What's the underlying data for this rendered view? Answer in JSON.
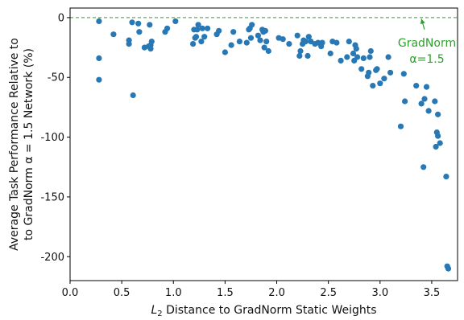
{
  "chart_data": {
    "type": "scatter",
    "title": "",
    "xlabel_main": "L",
    "xlabel_sub": "2",
    "xlabel_rest": " Distance to GradNorm Static Weights",
    "ylabel_line1": "Average Task Performance Relative to",
    "ylabel_line2": "to GradNorm α = 1.5 Network (%)",
    "xlim": [
      0.0,
      3.75
    ],
    "ylim": [
      -220,
      8
    ],
    "xticks": [
      0.0,
      0.5,
      1.0,
      1.5,
      2.0,
      2.5,
      3.0,
      3.5
    ],
    "xtick_labels": [
      "0.0",
      "0.5",
      "1.0",
      "1.5",
      "2.0",
      "2.5",
      "3.0",
      "3.5"
    ],
    "yticks": [
      0,
      -50,
      -100,
      -150,
      -200
    ],
    "ytick_labels": [
      "0",
      "-50",
      "-100",
      "-150",
      "-200"
    ],
    "grid": false,
    "colors": {
      "points": "#2878b5",
      "reference": "#2ca02c"
    },
    "reference_line": {
      "y": 0,
      "style": "dashed"
    },
    "annotation": {
      "line1": "GradNorm",
      "line2": "α=1.5",
      "arrow_from": [
        3.43,
        -10
      ],
      "arrow_to": [
        3.4,
        -1
      ]
    },
    "points": [
      [
        0.28,
        -3
      ],
      [
        0.28,
        -34
      ],
      [
        0.28,
        -52
      ],
      [
        0.42,
        -14
      ],
      [
        0.57,
        -19
      ],
      [
        0.57,
        -22
      ],
      [
        0.6,
        -4
      ],
      [
        0.61,
        -65
      ],
      [
        0.66,
        -5
      ],
      [
        0.67,
        -12
      ],
      [
        0.72,
        -25
      ],
      [
        0.76,
        -24
      ],
      [
        0.77,
        -6
      ],
      [
        0.78,
        -26
      ],
      [
        0.79,
        -20
      ],
      [
        0.78,
        -23
      ],
      [
        0.92,
        -12
      ],
      [
        0.94,
        -9
      ],
      [
        1.02,
        -3
      ],
      [
        1.19,
        -22
      ],
      [
        1.2,
        -10
      ],
      [
        1.21,
        -17
      ],
      [
        1.22,
        -16
      ],
      [
        1.23,
        -10
      ],
      [
        1.24,
        -6
      ],
      [
        1.27,
        -20
      ],
      [
        1.28,
        -9
      ],
      [
        1.3,
        -16
      ],
      [
        1.33,
        -9
      ],
      [
        1.42,
        -14
      ],
      [
        1.44,
        -11
      ],
      [
        1.5,
        -29
      ],
      [
        1.56,
        -23
      ],
      [
        1.58,
        -12
      ],
      [
        1.64,
        -20
      ],
      [
        1.71,
        -21
      ],
      [
        1.73,
        -10
      ],
      [
        1.74,
        -9
      ],
      [
        1.75,
        -17
      ],
      [
        1.76,
        -6
      ],
      [
        1.82,
        -15
      ],
      [
        1.84,
        -19
      ],
      [
        1.86,
        -10
      ],
      [
        1.87,
        -12
      ],
      [
        1.88,
        -25
      ],
      [
        1.89,
        -11
      ],
      [
        1.9,
        -20
      ],
      [
        1.92,
        -28
      ],
      [
        2.02,
        -17
      ],
      [
        2.06,
        -18
      ],
      [
        2.12,
        -22
      ],
      [
        2.2,
        -15
      ],
      [
        2.22,
        -32
      ],
      [
        2.23,
        -28
      ],
      [
        2.25,
        -22
      ],
      [
        2.26,
        -19
      ],
      [
        2.28,
        -20
      ],
      [
        2.3,
        -32
      ],
      [
        2.31,
        -16
      ],
      [
        2.33,
        -20
      ],
      [
        2.37,
        -22
      ],
      [
        2.4,
        -21
      ],
      [
        2.43,
        -24
      ],
      [
        2.44,
        -21
      ],
      [
        2.52,
        -30
      ],
      [
        2.54,
        -20
      ],
      [
        2.58,
        -21
      ],
      [
        2.62,
        -36
      ],
      [
        2.68,
        -33
      ],
      [
        2.7,
        -20
      ],
      [
        2.74,
        -30
      ],
      [
        2.75,
        -36
      ],
      [
        2.76,
        -23
      ],
      [
        2.77,
        -26
      ],
      [
        2.78,
        -33
      ],
      [
        2.82,
        -43
      ],
      [
        2.84,
        -34
      ],
      [
        2.88,
        -49
      ],
      [
        2.89,
        -46
      ],
      [
        2.9,
        -33
      ],
      [
        2.91,
        -28
      ],
      [
        2.93,
        -57
      ],
      [
        2.96,
        -44
      ],
      [
        2.97,
        -43
      ],
      [
        3.0,
        -55
      ],
      [
        3.04,
        -51
      ],
      [
        3.08,
        -33
      ],
      [
        3.1,
        -46
      ],
      [
        3.2,
        -91
      ],
      [
        3.23,
        -47
      ],
      [
        3.24,
        -70
      ],
      [
        3.35,
        -57
      ],
      [
        3.4,
        -72
      ],
      [
        3.42,
        -125
      ],
      [
        3.43,
        -68
      ],
      [
        3.45,
        -58
      ],
      [
        3.47,
        -78
      ],
      [
        3.53,
        -70
      ],
      [
        3.54,
        -108
      ],
      [
        3.55,
        -96
      ],
      [
        3.56,
        -99
      ],
      [
        3.56,
        -81
      ],
      [
        3.58,
        -105
      ],
      [
        3.64,
        -133
      ],
      [
        3.65,
        -208
      ],
      [
        3.66,
        -210
      ]
    ]
  }
}
